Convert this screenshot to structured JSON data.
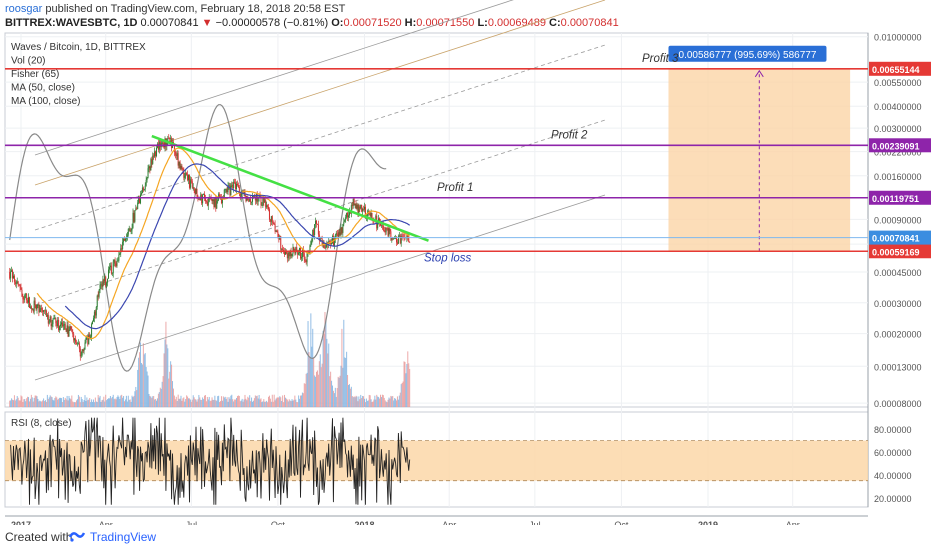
{
  "header": {
    "user": "roosgar",
    "published": "published on TradingView.com, February 18, 2018 20:58 EST",
    "symbol": "BITTREX:WAVESBTC, 1D",
    "last": "0.00070841",
    "change": "−0.00000578 (−0.81%)",
    "o_label": "O:",
    "o": "0.00071520",
    "h_label": "H:",
    "h": "0.00071550",
    "l_label": "L:",
    "l": "0.00069489",
    "c_label": "C:",
    "c": "0.00070841"
  },
  "legend": [
    "Waves / Bitcoin, 1D, BITTREX",
    "Vol (20)",
    "Fisher (65)",
    "MA (50, close)",
    "MA (100, close)"
  ],
  "rsi_legend": "RSI (8, close)",
  "footer": {
    "created": "Created with",
    "brand": "TradingView"
  },
  "colors": {
    "up": "#2e7d32",
    "down": "#d32f2f",
    "ma50": "#f5a623",
    "ma100": "#3b47b0",
    "fisher": "#8a8a8a",
    "trend": "#44e044",
    "profit": "#8e24aa",
    "stop": "#e53935",
    "target_fill": "#fbd5a6",
    "rsi_band": "#fcd7a8",
    "accent": "#2a6fd6"
  },
  "chart_data": [
    {
      "type": "candlestick",
      "title": "Waves / Bitcoin, 1D, BITTREX",
      "y_scale": "log",
      "y_ticks": [
        "0.01000000",
        "0.00550000",
        "0.00400000",
        "0.00300000",
        "0.00220000",
        "0.00160000",
        "0.00120000",
        "0.00090000",
        "0.00065000",
        "0.00045000",
        "0.00030000",
        "0.00020000",
        "0.00013000",
        "0.00008000"
      ],
      "x_ticks": [
        "2017",
        "Apr",
        "Jul",
        "Oct",
        "2018",
        "Apr",
        "Jul",
        "Oct",
        "2019",
        "Apr"
      ],
      "price_path": [
        [
          "2016-12-20",
          0.00045
        ],
        [
          "2017-01-05",
          0.00032
        ],
        [
          "2017-02-01",
          0.00024
        ],
        [
          "2017-02-25",
          0.0002
        ],
        [
          "2017-03-05",
          0.00016
        ],
        [
          "2017-03-15",
          0.00019
        ],
        [
          "2017-03-25",
          0.00035
        ],
        [
          "2017-04-10",
          0.0005
        ],
        [
          "2017-04-25",
          0.00075
        ],
        [
          "2017-05-05",
          0.0011
        ],
        [
          "2017-05-15",
          0.0016
        ],
        [
          "2017-05-25",
          0.0023
        ],
        [
          "2017-06-08",
          0.0026
        ],
        [
          "2017-06-15",
          0.0021
        ],
        [
          "2017-06-25",
          0.0016
        ],
        [
          "2017-07-10",
          0.0012
        ],
        [
          "2017-07-25",
          0.0011
        ],
        [
          "2017-08-15",
          0.0014
        ],
        [
          "2017-08-25",
          0.00125
        ],
        [
          "2017-09-15",
          0.00115
        ],
        [
          "2017-09-25",
          0.00085
        ],
        [
          "2017-10-10",
          0.00055
        ],
        [
          "2017-10-20",
          0.0006
        ],
        [
          "2017-11-01",
          0.00055
        ],
        [
          "2017-11-10",
          0.00085
        ],
        [
          "2017-11-20",
          0.0006
        ],
        [
          "2017-12-05",
          0.00075
        ],
        [
          "2017-12-20",
          0.0011
        ],
        [
          "2018-01-05",
          0.00095
        ],
        [
          "2018-01-20",
          0.00082
        ],
        [
          "2018-02-05",
          0.00068
        ],
        [
          "2018-02-18",
          0.00070841
        ]
      ],
      "volume_peaks": [
        [
          "2017-05-10",
          0.6
        ],
        [
          "2017-06-05",
          0.7
        ],
        [
          "2017-11-05",
          0.95
        ],
        [
          "2017-11-20",
          1.0
        ],
        [
          "2017-12-10",
          0.75
        ],
        [
          "2018-02-15",
          0.45
        ]
      ],
      "last_volume": "0.00070841",
      "trend_line": [
        [
          "2017-05-20",
          0.0027
        ],
        [
          "2018-03-10",
          0.00068
        ]
      ],
      "stop_loss_text": "Stop loss",
      "levels": [
        {
          "label": "Profit 1",
          "value": "0.00119751",
          "kind": "profit"
        },
        {
          "label": "Profit 2",
          "value": "0.00239091",
          "kind": "profit"
        },
        {
          "label": "Profit 3",
          "value": "0.00655144",
          "kind": "target"
        },
        {
          "label": "",
          "value": "0.00059169",
          "kind": "stop"
        },
        {
          "label": "",
          "value": "0.00070841",
          "kind": "last"
        }
      ],
      "target_box": {
        "from": "2018-11-20",
        "to": "2019-06-01",
        "low": 0.00059169,
        "high": 0.00655144,
        "label": "0.00586777 (995.69%) 586777"
      }
    },
    {
      "type": "line",
      "title": "RSI (8, close)",
      "y_ticks": [
        "80.00000",
        "60.00000",
        "40.00000",
        "20.00000"
      ],
      "band": [
        35,
        70
      ],
      "ylim": [
        12,
        95
      ]
    }
  ]
}
